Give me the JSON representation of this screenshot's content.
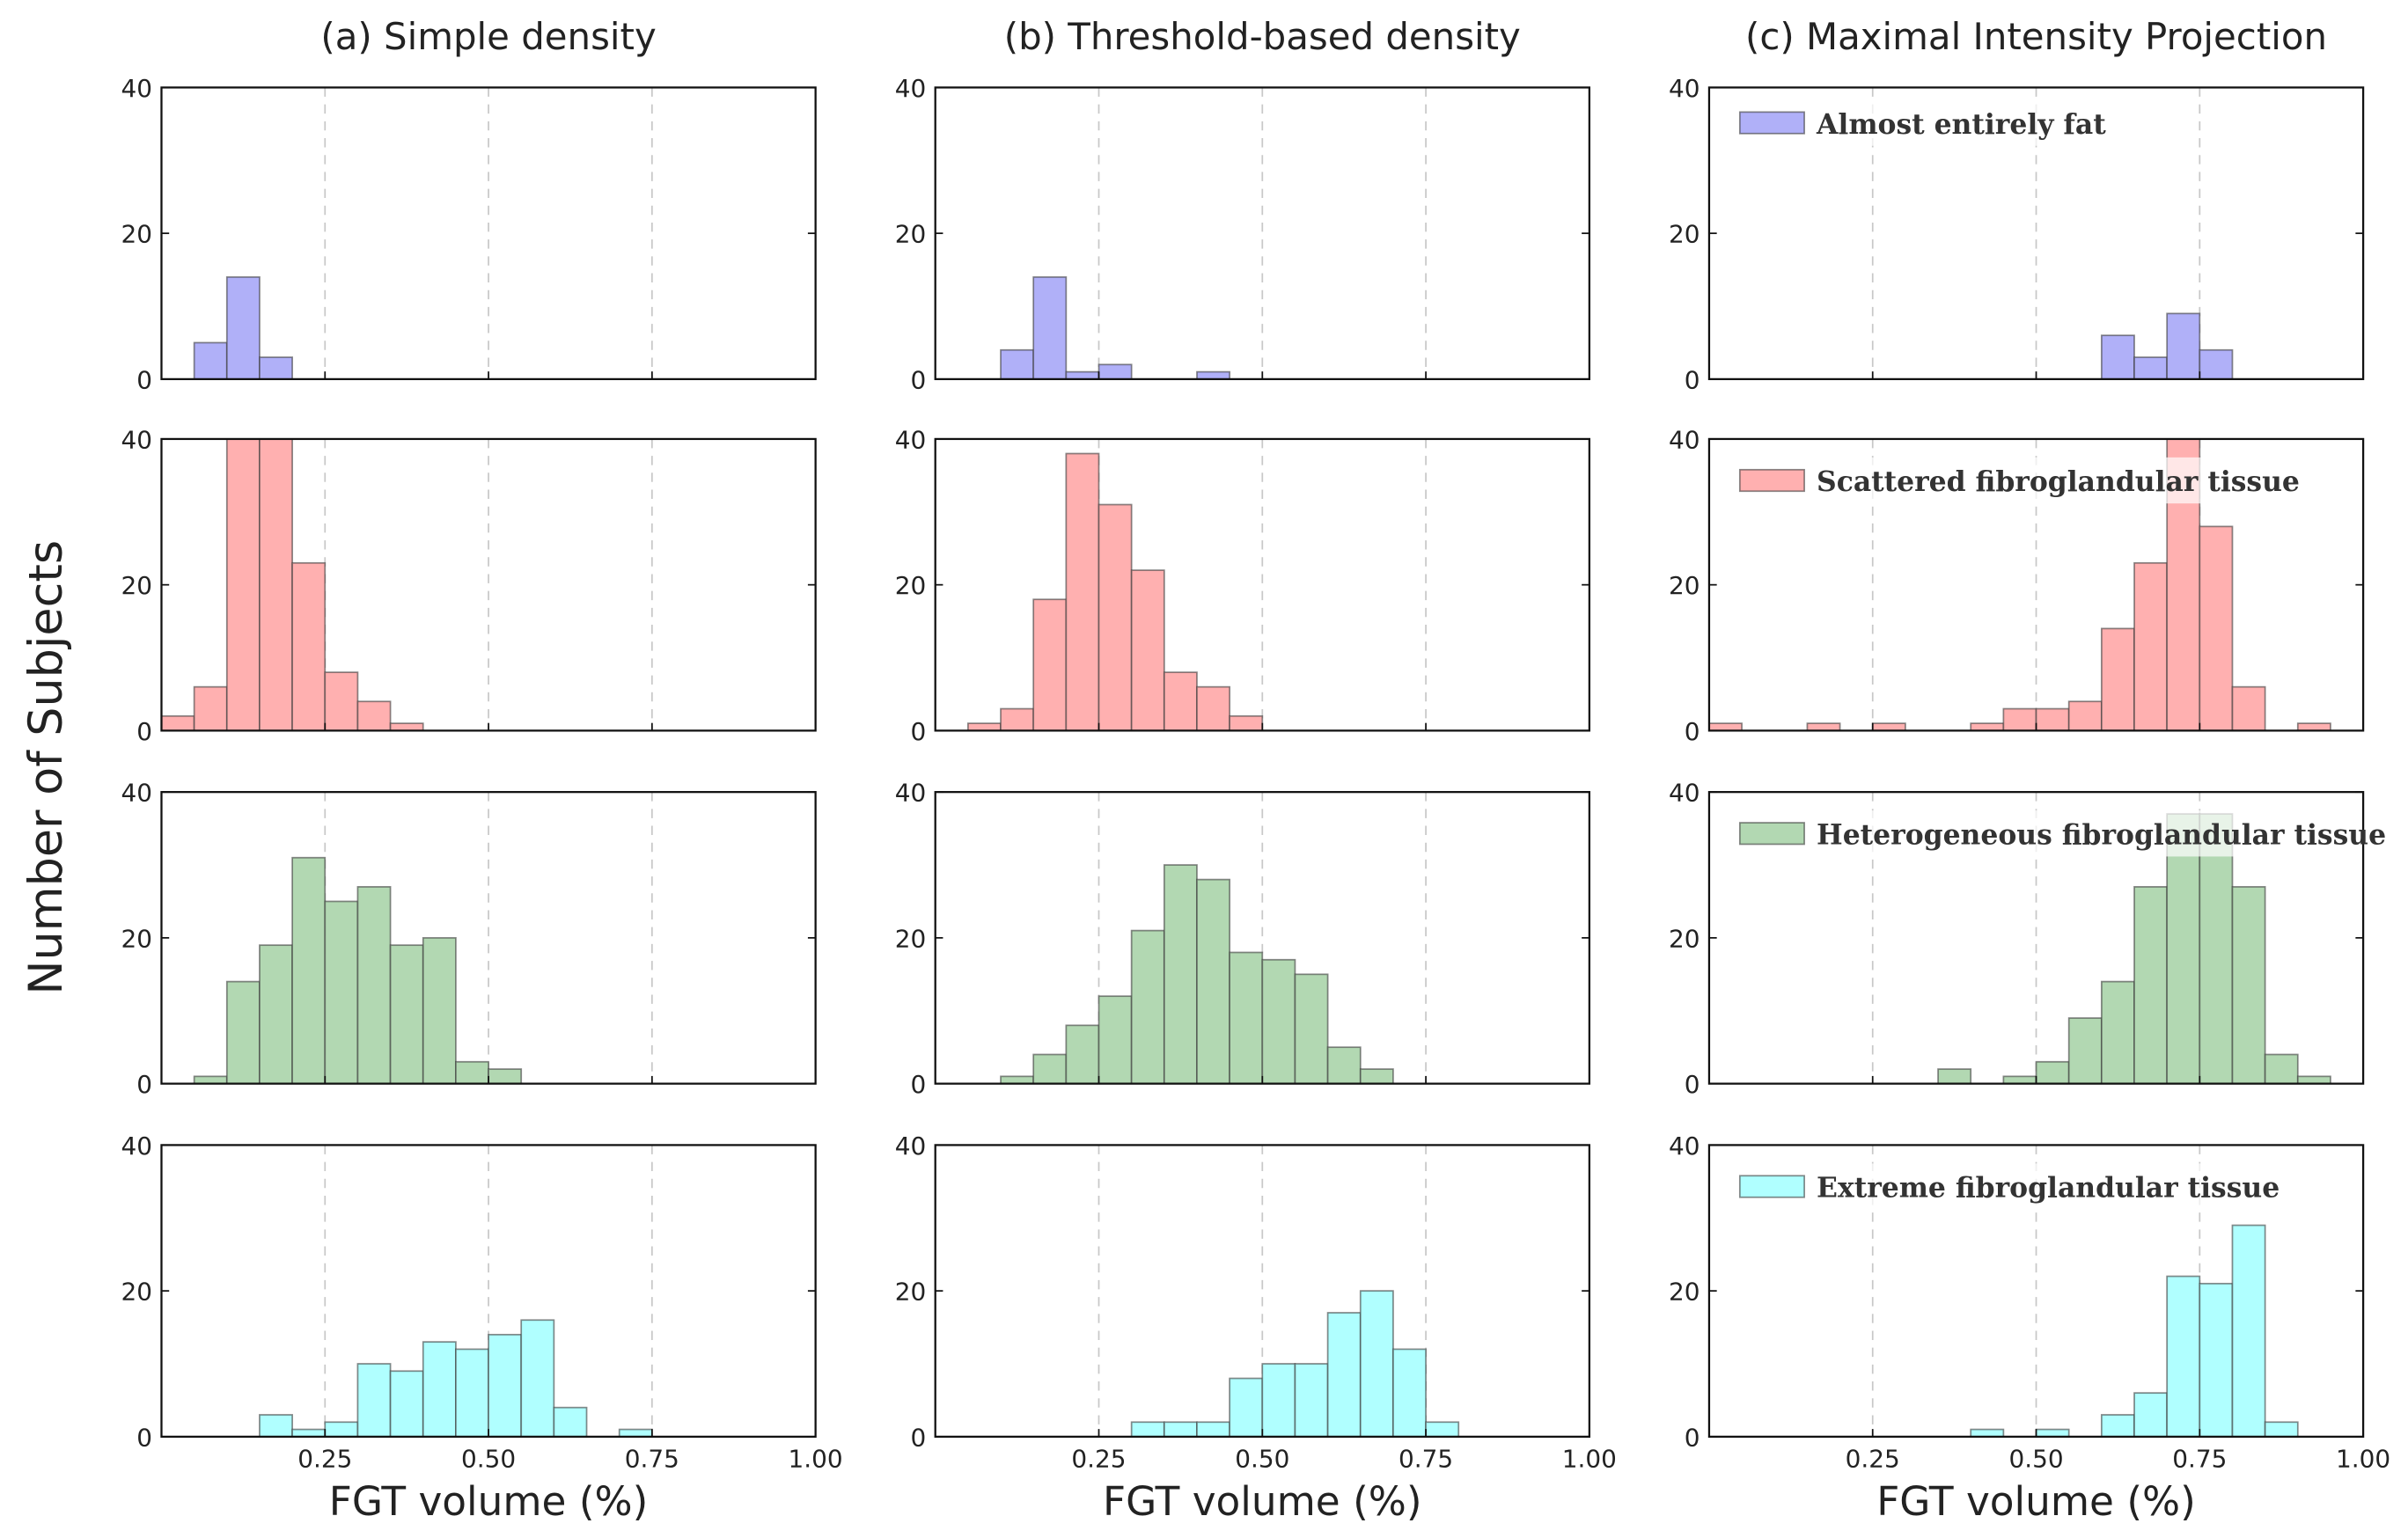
{
  "chart_data": {
    "type": "bar",
    "ylabel": "Number of Subjects",
    "xlabel": "FGT volume (%)",
    "xlim": [
      0,
      1.0
    ],
    "ylim": [
      0,
      40
    ],
    "bin_width": 0.05,
    "bin_starts": [
      0,
      0.05,
      0.1,
      0.15,
      0.2,
      0.25,
      0.3,
      0.35,
      0.4,
      0.45,
      0.5,
      0.55,
      0.6,
      0.65,
      0.7,
      0.75,
      0.8,
      0.85,
      0.9,
      0.95
    ],
    "xticks": [
      "0.25",
      "0.50",
      "0.75",
      "1.00"
    ],
    "xtick_values": [
      0.25,
      0.5,
      0.75,
      1.0
    ],
    "yticks": [
      "0",
      "20",
      "40"
    ],
    "ytick_values": [
      0,
      20,
      40
    ],
    "grid": "vertical dashed at x ticks",
    "legend_placement": "top-left (column c)",
    "columns": [
      {
        "title": "(a) Simple density"
      },
      {
        "title": "(b) Threshold-based density"
      },
      {
        "title": "(c) Maximal Intensity Projection"
      }
    ],
    "categories": [
      {
        "name": "Almost entirely fat",
        "color": "#b0b0f8"
      },
      {
        "name": "Scattered fibroglandular tissue",
        "color": "#ffb0b0"
      },
      {
        "name": "Heterogeneous fibroglandular tissue",
        "color": "#b2d8b2"
      },
      {
        "name": "Extreme fibroglandular tissue",
        "color": "#b0ffff"
      }
    ],
    "series": [
      [
        [
          0,
          5,
          14,
          3,
          0,
          0,
          0,
          0,
          0,
          0,
          0,
          0,
          0,
          0,
          0,
          0,
          0,
          0,
          0,
          0
        ],
        [
          2,
          6,
          42,
          42,
          23,
          8,
          4,
          1,
          0,
          0,
          0,
          0,
          0,
          0,
          0,
          0,
          0,
          0,
          0,
          0
        ],
        [
          0,
          1,
          14,
          19,
          31,
          25,
          27,
          19,
          20,
          3,
          2,
          0,
          0,
          0,
          0,
          0,
          0,
          0,
          0,
          0
        ],
        [
          0,
          0,
          0,
          3,
          1,
          2,
          10,
          9,
          13,
          12,
          14,
          16,
          4,
          0,
          1,
          0,
          0,
          0,
          0,
          0
        ]
      ],
      [
        [
          0,
          0,
          4,
          14,
          1,
          2,
          0,
          0,
          1,
          0,
          0,
          0,
          0,
          0,
          0,
          0,
          0,
          0,
          0,
          0
        ],
        [
          0,
          1,
          3,
          18,
          38,
          31,
          22,
          8,
          6,
          2,
          0,
          0,
          0,
          0,
          0,
          0,
          0,
          0,
          0,
          0
        ],
        [
          0,
          0,
          1,
          4,
          8,
          12,
          21,
          30,
          28,
          18,
          17,
          15,
          5,
          2,
          0,
          0,
          0,
          0,
          0,
          0
        ],
        [
          0,
          0,
          0,
          0,
          0,
          0,
          2,
          2,
          2,
          8,
          10,
          10,
          17,
          20,
          12,
          2,
          0,
          0,
          0,
          0
        ]
      ],
      [
        [
          0,
          0,
          0,
          0,
          0,
          0,
          0,
          0,
          0,
          0,
          0,
          0,
          6,
          3,
          9,
          4,
          0,
          0,
          0,
          0
        ],
        [
          1,
          0,
          0,
          1,
          0,
          1,
          0,
          0,
          1,
          3,
          3,
          4,
          14,
          23,
          42,
          28,
          6,
          0,
          1,
          0
        ],
        [
          0,
          0,
          0,
          0,
          0,
          0,
          0,
          2,
          0,
          1,
          3,
          9,
          14,
          27,
          37,
          37,
          27,
          4,
          1,
          0
        ],
        [
          0,
          0,
          0,
          0,
          0,
          0,
          0,
          0,
          1,
          0,
          1,
          0,
          3,
          6,
          22,
          21,
          29,
          2,
          0,
          0
        ]
      ]
    ]
  }
}
